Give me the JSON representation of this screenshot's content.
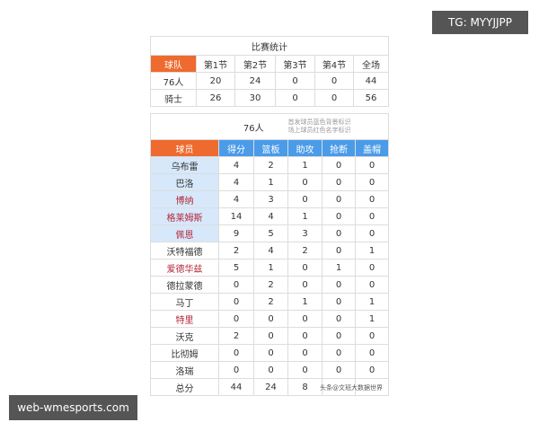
{
  "summary": {
    "title": "比赛统计",
    "headers": [
      "球队",
      "第1节",
      "第2节",
      "第3节",
      "第4节",
      "全场"
    ],
    "rows": [
      [
        "76人",
        "20",
        "24",
        "0",
        "0",
        "44"
      ],
      [
        "骑士",
        "26",
        "30",
        "0",
        "0",
        "56"
      ]
    ]
  },
  "box": {
    "team": "76人",
    "note1": "首发球员蓝色背景标识",
    "note2": "场上球员红色名字标识",
    "headers": [
      "球员",
      "得分",
      "篮板",
      "助攻",
      "抢断",
      "盖帽"
    ],
    "rows": [
      {
        "name": "乌布雷",
        "vals": [
          "4",
          "2",
          "1",
          "0",
          "0"
        ],
        "starter": true,
        "oncourt": false
      },
      {
        "name": "巴洛",
        "vals": [
          "4",
          "1",
          "0",
          "0",
          "0"
        ],
        "starter": true,
        "oncourt": false
      },
      {
        "name": "博纳",
        "vals": [
          "4",
          "3",
          "0",
          "0",
          "0"
        ],
        "starter": true,
        "oncourt": true
      },
      {
        "name": "格莱姆斯",
        "vals": [
          "14",
          "4",
          "1",
          "0",
          "0"
        ],
        "starter": true,
        "oncourt": true
      },
      {
        "name": "佩恩",
        "vals": [
          "9",
          "5",
          "3",
          "0",
          "0"
        ],
        "starter": true,
        "oncourt": true
      },
      {
        "name": "沃特福德",
        "vals": [
          "2",
          "4",
          "2",
          "0",
          "1"
        ],
        "starter": false,
        "oncourt": false
      },
      {
        "name": "爱德华兹",
        "vals": [
          "5",
          "1",
          "0",
          "1",
          "0"
        ],
        "starter": false,
        "oncourt": true
      },
      {
        "name": "德拉蒙德",
        "vals": [
          "0",
          "2",
          "0",
          "0",
          "0"
        ],
        "starter": false,
        "oncourt": false
      },
      {
        "name": "马丁",
        "vals": [
          "0",
          "2",
          "1",
          "0",
          "1"
        ],
        "starter": false,
        "oncourt": false
      },
      {
        "name": "特里",
        "vals": [
          "0",
          "0",
          "0",
          "0",
          "1"
        ],
        "starter": false,
        "oncourt": true
      },
      {
        "name": "沃克",
        "vals": [
          "2",
          "0",
          "0",
          "0",
          "0"
        ],
        "starter": false,
        "oncourt": false
      },
      {
        "name": "比彻姆",
        "vals": [
          "0",
          "0",
          "0",
          "0",
          "0"
        ],
        "starter": false,
        "oncourt": false
      },
      {
        "name": "洛瑞",
        "vals": [
          "0",
          "0",
          "0",
          "0",
          "0"
        ],
        "starter": false,
        "oncourt": false
      }
    ],
    "total": {
      "label": "总分",
      "vals": [
        "44",
        "24",
        "8"
      ]
    }
  },
  "source_overlay": "头条@文班大数据世界",
  "watermarks": {
    "top": "TG: MYYJJPP",
    "bottom": "web-wmesports.com"
  },
  "colors": {
    "header_orange": "#ee6a2e",
    "header_blue": "#4a9be8",
    "starter_bg": "#d6e8fa",
    "oncourt_red": "#b5283a"
  }
}
